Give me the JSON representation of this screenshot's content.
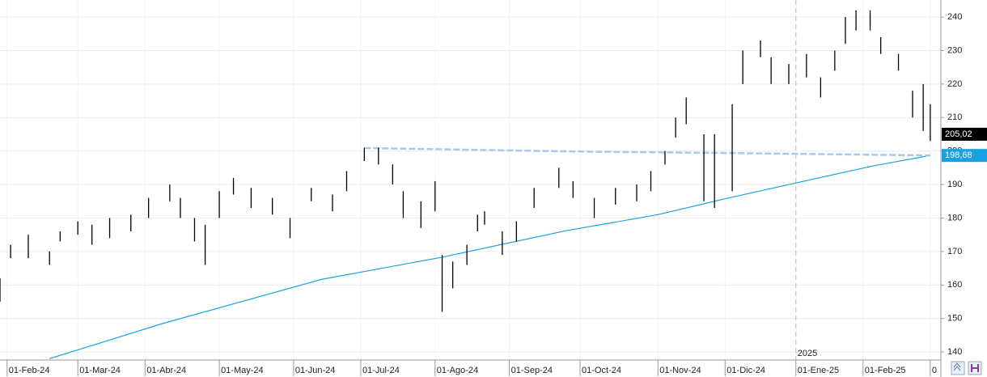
{
  "chart_data": {
    "type": "ohlc",
    "x": [
      -2,
      1,
      6,
      12,
      15,
      20,
      24,
      29,
      35,
      40,
      46,
      49,
      53,
      56,
      60,
      64,
      69,
      75,
      80,
      86,
      92,
      96,
      101,
      105,
      109,
      112,
      117,
      121,
      123,
      126,
      130,
      133,
      135,
      140,
      144,
      149,
      156,
      160,
      166,
      172,
      178,
      182,
      186,
      189,
      192,
      197,
      200,
      205,
      208,
      213,
      216,
      221,
      226,
      230,
      234,
      237,
      240,
      244,
      247,
      252,
      256,
      259,
      261
    ],
    "high": [
      162,
      172,
      175,
      170,
      176,
      179,
      178,
      180,
      181,
      186,
      190,
      186,
      180,
      178,
      188,
      192,
      189,
      186,
      180,
      189,
      187,
      194,
      201,
      201,
      196,
      188,
      185,
      191,
      169,
      167,
      172,
      181,
      182,
      176,
      179,
      189,
      195,
      191,
      186,
      189,
      190,
      194,
      200,
      210,
      216,
      205,
      205,
      214,
      230,
      233,
      228,
      226,
      229,
      222,
      230,
      240,
      242,
      242,
      234,
      229,
      218,
      220,
      214
    ],
    "low": [
      155,
      168,
      168,
      166,
      173,
      175,
      172,
      174,
      176,
      180,
      185,
      180,
      173,
      166,
      180,
      187,
      183,
      181,
      174,
      185,
      182,
      188,
      197,
      196,
      190,
      180,
      177,
      182,
      152,
      159,
      166,
      176,
      178,
      169,
      173,
      183,
      189,
      186,
      180,
      184,
      185,
      188,
      196,
      204,
      208,
      185,
      183,
      188,
      220,
      228,
      220,
      220,
      222,
      216,
      224,
      232,
      236,
      236,
      229,
      224,
      210,
      206,
      203
    ],
    "bar_color": "#000000",
    "lines": [
      {
        "color": "#1ba1e2",
        "dashed": false,
        "x": [
          12,
          44,
          89,
          123,
          158,
          184,
          204,
          227,
          245,
          261
        ],
        "values": [
          138,
          148.5,
          161.7,
          168.3,
          176.2,
          181,
          186,
          191.4,
          195.6,
          198.68
        ]
      },
      {
        "color": "#a9c9ea",
        "dashed": true,
        "x": [
          101,
          158,
          204,
          245,
          261
        ],
        "values": [
          200.9,
          199.9,
          199.4,
          198.9,
          198.68
        ]
      }
    ],
    "price_labels": [
      {
        "value": 205.02,
        "label": "205,02",
        "color": "#000000"
      },
      {
        "value": 198.68,
        "label": "198,68",
        "color": "#1ba1e2"
      }
    ],
    "year_marker": {
      "value": 223,
      "label": "2025"
    },
    "xlim": [
      -2,
      264
    ],
    "ylim": [
      137.6,
      245.1
    ],
    "yticks": [
      140,
      150,
      160,
      170,
      180,
      190,
      200,
      210,
      220,
      230,
      240
    ],
    "xticks": [
      {
        "value": 0,
        "label": "01-Feb-24"
      },
      {
        "value": 20,
        "label": "01-Mar-24"
      },
      {
        "value": 39,
        "label": "01-Abr-24"
      },
      {
        "value": 60,
        "label": "01-May-24"
      },
      {
        "value": 81,
        "label": "01-Jun-24"
      },
      {
        "value": 100,
        "label": "01-Jul-24"
      },
      {
        "value": 121,
        "label": "01-Ago-24"
      },
      {
        "value": 142,
        "label": "01-Sep-24"
      },
      {
        "value": 162,
        "label": "01-Oct-24"
      },
      {
        "value": 184,
        "label": "01-Nov-24"
      },
      {
        "value": 203,
        "label": "01-Dic-24"
      },
      {
        "value": 223,
        "label": "01-Ene-25"
      },
      {
        "value": 242,
        "label": "01-Feb-25"
      },
      {
        "value": 261,
        "label": "0"
      }
    ],
    "grid": true
  }
}
